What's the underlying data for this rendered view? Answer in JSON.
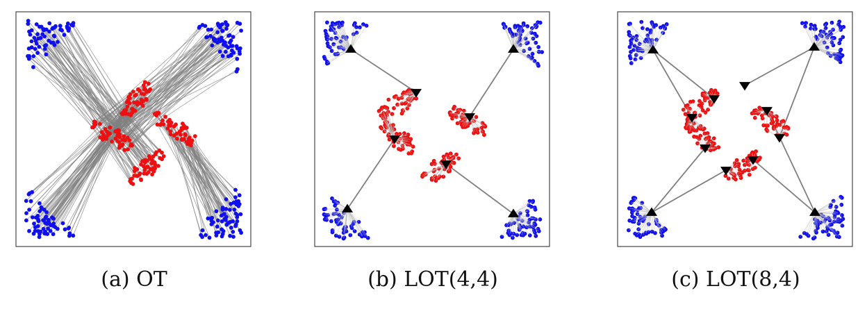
{
  "colors": {
    "source_points": "#1010ee",
    "target_points": "#ee1010",
    "transport_lines": "#808080",
    "anchors": "#000000",
    "frame": "#555555"
  },
  "icons": {
    "source_anchor": "triangle-up",
    "target_anchor": "triangle-down"
  },
  "panels": [
    {
      "id": "ot",
      "caption": "(a) OT"
    },
    {
      "id": "lot44",
      "caption": "(b) LOT(4,4)"
    },
    {
      "id": "lot84",
      "caption": "(c) LOT(8,4)"
    }
  ]
}
